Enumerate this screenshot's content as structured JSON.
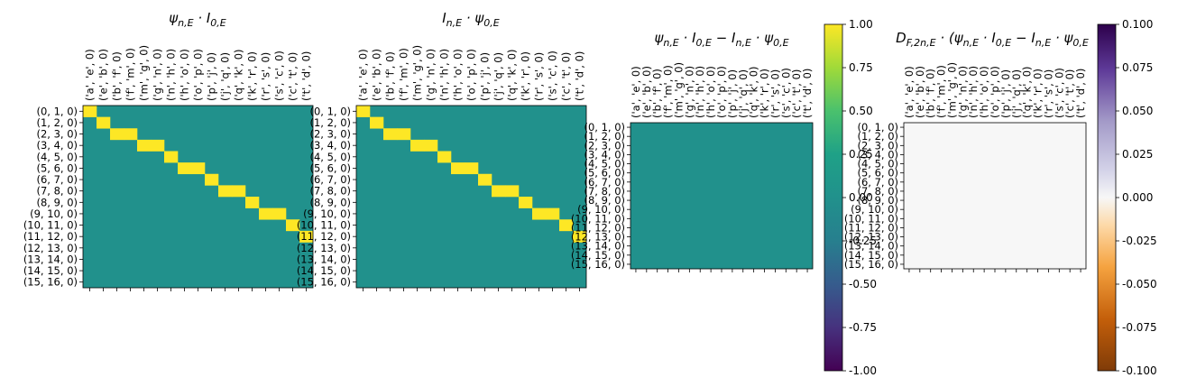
{
  "chart_data": [
    {
      "type": "heatmap",
      "title": "ψn,E · I0,E",
      "xticklabels": [
        "('a', 'e', 0)",
        "('e', 'b', 0)",
        "('b', 'f', 0)",
        "('f', 'm', 0)",
        "('m', 'g', 0)",
        "('g', 'n', 0)",
        "('n', 'h', 0)",
        "('h', 'o', 0)",
        "('o', 'p', 0)",
        "('p', 'j', 0)",
        "('j', 'q', 0)",
        "('q', 'k', 0)",
        "('k', 'r', 0)",
        "('r', 's', 0)",
        "('s', 'c', 0)",
        "('c', 't', 0)",
        "('t', 'd', 0)"
      ],
      "yticklabels": [
        "(0, 1, 0)",
        "(1, 2, 0)",
        "(2, 3, 0)",
        "(3, 4, 0)",
        "(4, 5, 0)",
        "(5, 6, 0)",
        "(6, 7, 0)",
        "(7, 8, 0)",
        "(8, 9, 0)",
        "(9, 10, 0)",
        "(10, 11, 0)",
        "(11, 12, 0)",
        "(12, 13, 0)",
        "(13, 14, 0)",
        "(14, 15, 0)",
        "(15, 16, 0)"
      ],
      "cells_value_1": [
        [
          0,
          0
        ],
        [
          1,
          1
        ],
        [
          2,
          2
        ],
        [
          2,
          3
        ],
        [
          3,
          4
        ],
        [
          3,
          5
        ],
        [
          4,
          6
        ],
        [
          5,
          7
        ],
        [
          5,
          8
        ],
        [
          6,
          9
        ],
        [
          7,
          10
        ],
        [
          7,
          11
        ],
        [
          8,
          12
        ],
        [
          9,
          13
        ],
        [
          9,
          14
        ],
        [
          10,
          15
        ],
        [
          11,
          16
        ]
      ],
      "default_value": 0,
      "colormap": "viridis"
    },
    {
      "type": "heatmap",
      "title": "In,E · ψ0,E",
      "xticklabels": [
        "('a', 'e', 0)",
        "('e', 'b', 0)",
        "('b', 'f', 0)",
        "('f', 'm', 0)",
        "('m', 'g', 0)",
        "('g', 'n', 0)",
        "('n', 'h', 0)",
        "('h', 'o', 0)",
        "('o', 'p', 0)",
        "('p', 'j', 0)",
        "('j', 'q', 0)",
        "('q', 'k', 0)",
        "('k', 'r', 0)",
        "('r', 's', 0)",
        "('s', 'c', 0)",
        "('c', 't', 0)",
        "('t', 'd', 0)"
      ],
      "yticklabels": [
        "(0, 1, 0)",
        "(1, 2, 0)",
        "(2, 3, 0)",
        "(3, 4, 0)",
        "(4, 5, 0)",
        "(5, 6, 0)",
        "(6, 7, 0)",
        "(7, 8, 0)",
        "(8, 9, 0)",
        "(9, 10, 0)",
        "(10, 11, 0)",
        "(11, 12, 0)",
        "(12, 13, 0)",
        "(13, 14, 0)",
        "(14, 15, 0)",
        "(15, 16, 0)"
      ],
      "cells_value_1": [
        [
          0,
          0
        ],
        [
          1,
          1
        ],
        [
          2,
          2
        ],
        [
          2,
          3
        ],
        [
          3,
          4
        ],
        [
          3,
          5
        ],
        [
          4,
          6
        ],
        [
          5,
          7
        ],
        [
          5,
          8
        ],
        [
          6,
          9
        ],
        [
          7,
          10
        ],
        [
          7,
          11
        ],
        [
          8,
          12
        ],
        [
          9,
          13
        ],
        [
          9,
          14
        ],
        [
          10,
          15
        ],
        [
          11,
          16
        ]
      ],
      "default_value": 0,
      "colormap": "viridis"
    },
    {
      "type": "heatmap",
      "title": "ψn,E · I0,E − In,E · ψ0,E",
      "xticklabels": [
        "('a', 'e', 0)",
        "('e', 'b', 0)",
        "('b', 'f', 0)",
        "('f', 'm', 0)",
        "('m', 'g', 0)",
        "('g', 'n', 0)",
        "('n', 'h', 0)",
        "('h', 'o', 0)",
        "('o', 'p', 0)",
        "('p', 'j', 0)",
        "('j', 'q', 0)",
        "('q', 'k', 0)",
        "('k', 'r', 0)",
        "('r', 's', 0)",
        "('s', 'c', 0)",
        "('c', 't', 0)",
        "('t', 'd', 0)"
      ],
      "yticklabels": [
        "(0, 1, 0)",
        "(1, 2, 0)",
        "(2, 3, 0)",
        "(3, 4, 0)",
        "(4, 5, 0)",
        "(5, 6, 0)",
        "(6, 7, 0)",
        "(7, 8, 0)",
        "(8, 9, 0)",
        "(9, 10, 0)",
        "(10, 11, 0)",
        "(11, 12, 0)",
        "(12, 13, 0)",
        "(13, 14, 0)",
        "(14, 15, 0)",
        "(15, 16, 0)"
      ],
      "cells_value_1": [],
      "default_value": 0,
      "colormap": "viridis",
      "colorbar": {
        "vmin": -1.0,
        "vmax": 1.0,
        "ticks": [
          "-1.00",
          "-0.75",
          "-0.50",
          "-0.25",
          "0.00",
          "0.25",
          "0.50",
          "0.75",
          "1.00"
        ]
      }
    },
    {
      "type": "heatmap",
      "title": "DF,2n,E · (ψn,E · I0,E − In,E · ψ0,E",
      "xticklabels": [
        "('a', 'e', 0)",
        "('e', 'b', 0)",
        "('b', 'f', 0)",
        "('f', 'm', 0)",
        "('m', 'g', 0)",
        "('g', 'n', 0)",
        "('n', 'h', 0)",
        "('h', 'o', 0)",
        "('o', 'p', 0)",
        "('p', 'j', 0)",
        "('j', 'q', 0)",
        "('q', 'k', 0)",
        "('k', 'r', 0)",
        "('r', 's', 0)",
        "('s', 'c', 0)",
        "('c', 't', 0)",
        "('t', 'd', 0)"
      ],
      "yticklabels": [
        "(0, 1, 0)",
        "(1, 2, 0)",
        "(2, 3, 0)",
        "(3, 4, 0)",
        "(4, 5, 0)",
        "(5, 6, 0)",
        "(6, 7, 0)",
        "(7, 8, 0)",
        "(8, 9, 0)",
        "(9, 10, 0)",
        "(10, 11, 0)",
        "(11, 12, 0)",
        "(12, 13, 0)",
        "(13, 14, 0)",
        "(14, 15, 0)",
        "(15, 16, 0)"
      ],
      "cells_value_1": [],
      "default_value": 0,
      "colormap": "PuOr",
      "colorbar": {
        "vmin": -0.1,
        "vmax": 0.1,
        "ticks": [
          "-0.100",
          "-0.075",
          "-0.050",
          "-0.025",
          "0.000",
          "0.025",
          "0.050",
          "0.075",
          "0.100"
        ]
      }
    }
  ],
  "colors": {
    "viridis_mid": "#21918c",
    "viridis_max": "#fde725",
    "puor_mid": "#f7f7f7"
  }
}
